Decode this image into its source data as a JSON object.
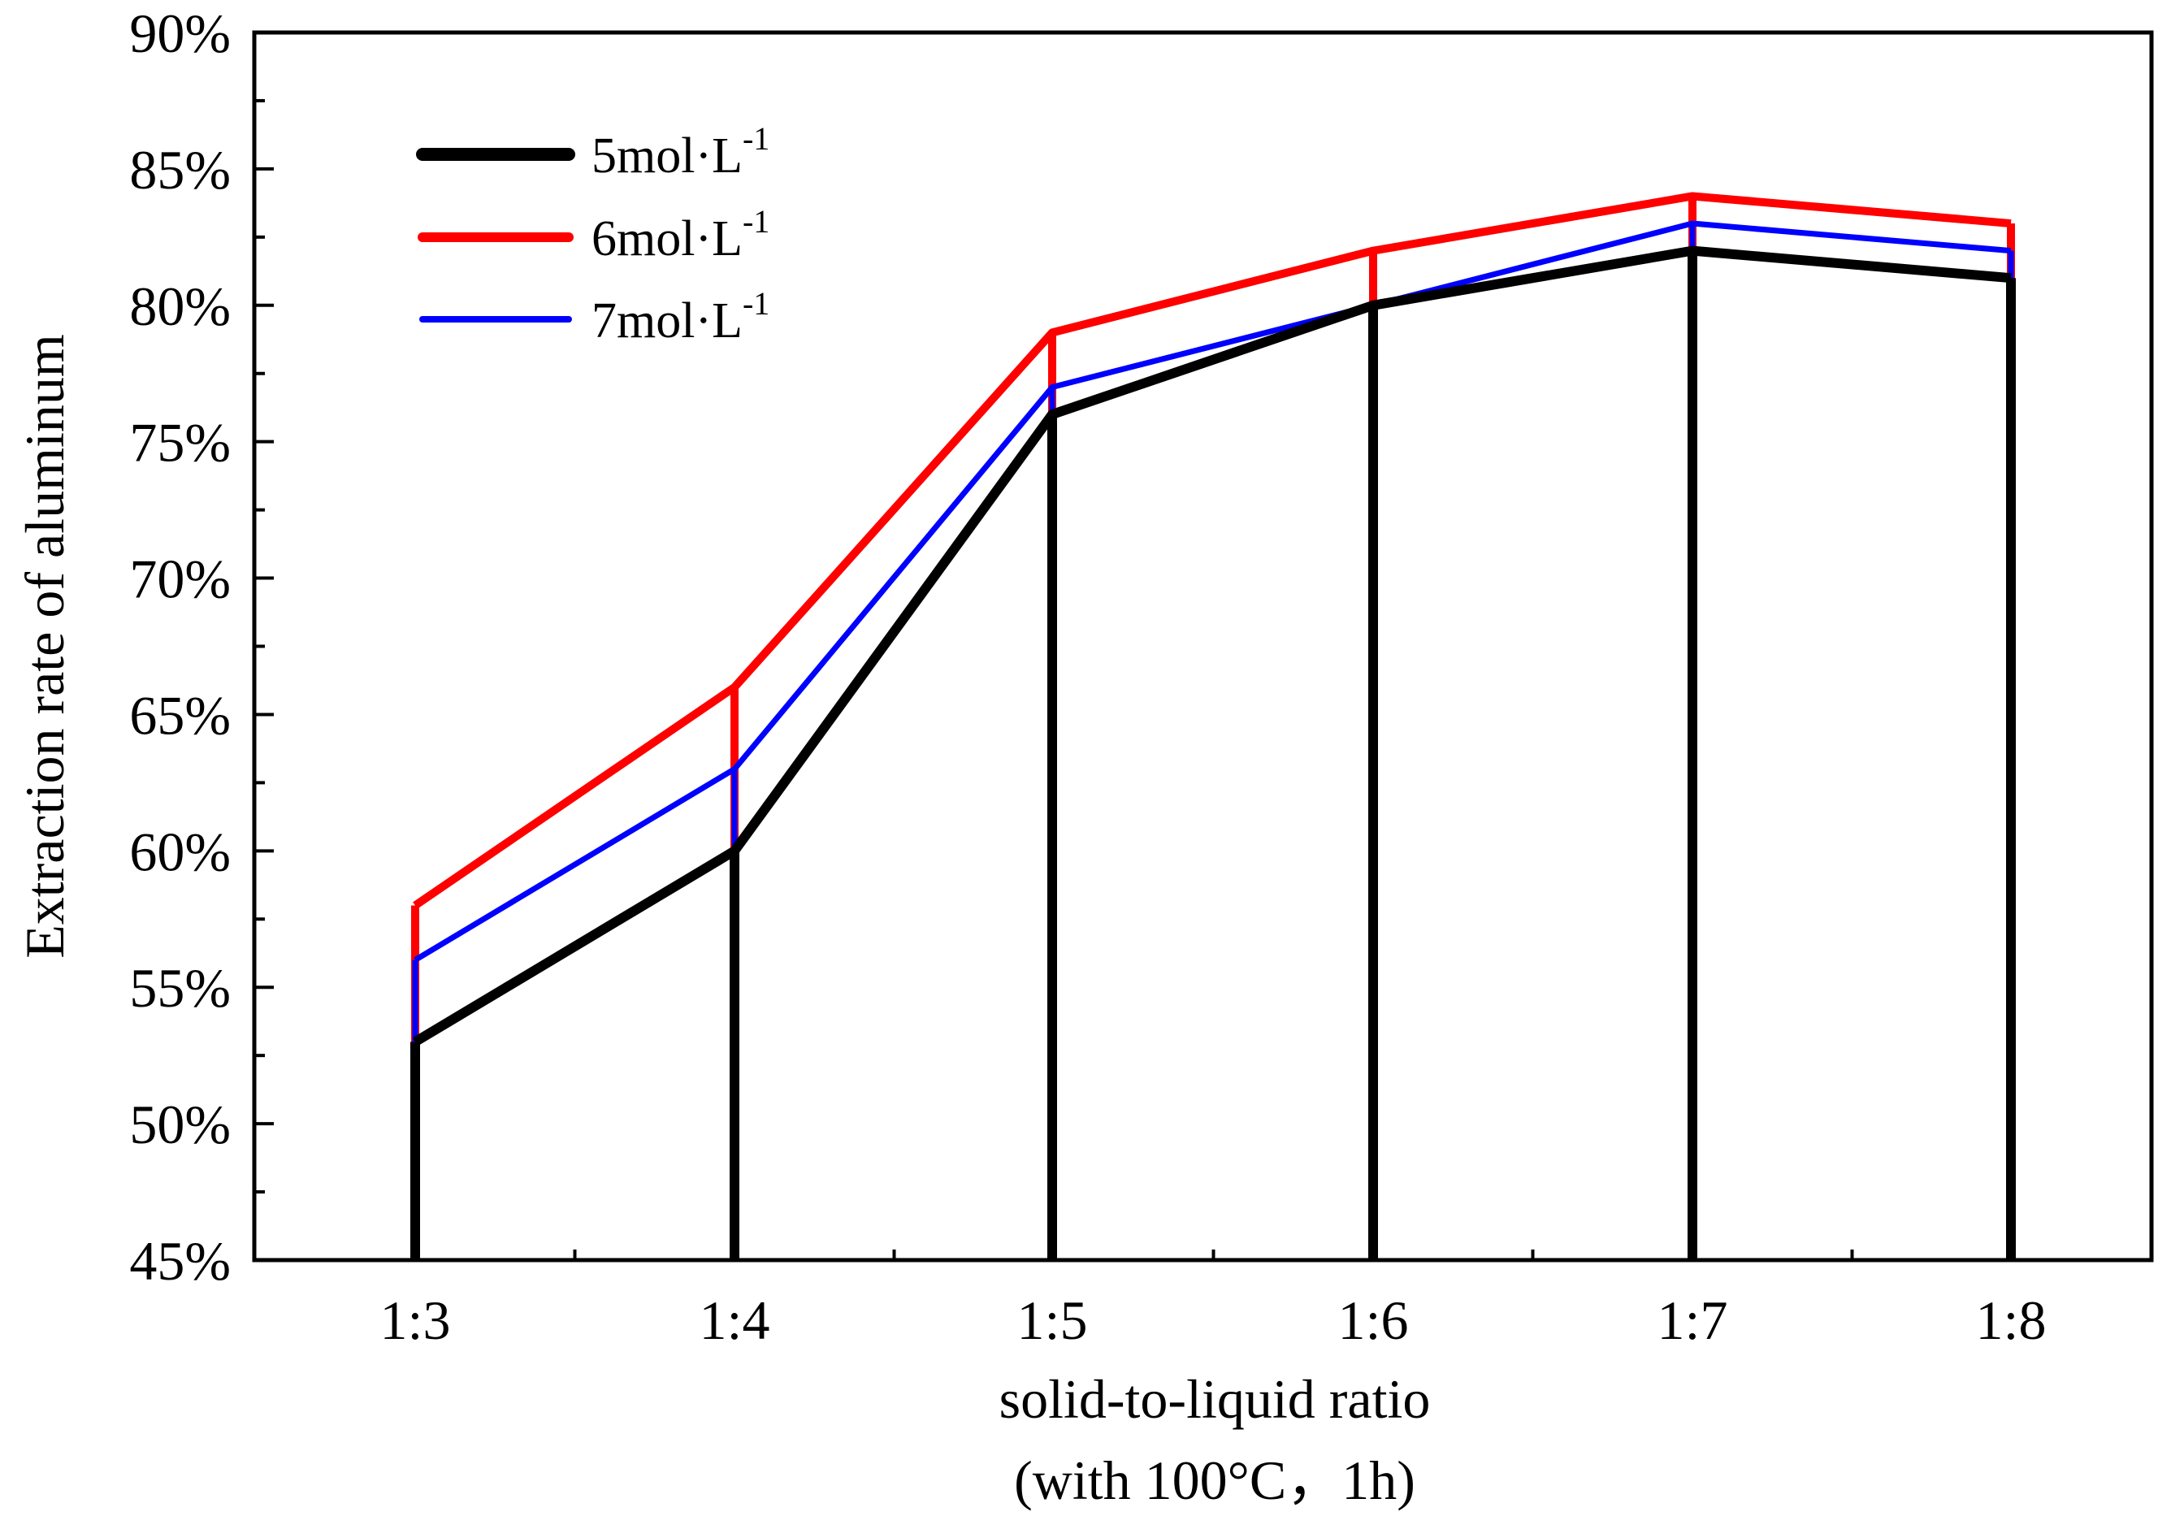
{
  "chart_data": {
    "type": "line",
    "title": "",
    "xlabel": "solid-to-liquid ratio",
    "xlabel_line2": "(with 100°C，1h)",
    "ylabel": "Extraction rate of aluminum",
    "categories": [
      "1:3",
      "1:4",
      "1:5",
      "1:6",
      "1:7",
      "1:8"
    ],
    "ylim": [
      45,
      90
    ],
    "yticks": [
      45,
      50,
      55,
      60,
      65,
      70,
      75,
      80,
      85,
      90
    ],
    "ytick_labels": [
      "45%",
      "50%",
      "55%",
      "60%",
      "65%",
      "70%",
      "75%",
      "80%",
      "85%",
      "90%"
    ],
    "drop_lines": true,
    "legend_position": "top-left",
    "series": [
      {
        "name": "5mol·L",
        "superscript": "-1",
        "color": "#000000",
        "values": [
          53,
          60,
          76,
          80,
          82,
          81
        ]
      },
      {
        "name": "6mol·L",
        "superscript": "-1",
        "color": "#ff0000",
        "values": [
          58,
          66,
          79,
          82,
          84,
          83
        ]
      },
      {
        "name": "7mol·L",
        "superscript": "-1",
        "color": "#0000ff",
        "values": [
          56,
          63,
          77,
          80,
          83,
          82
        ]
      }
    ]
  }
}
